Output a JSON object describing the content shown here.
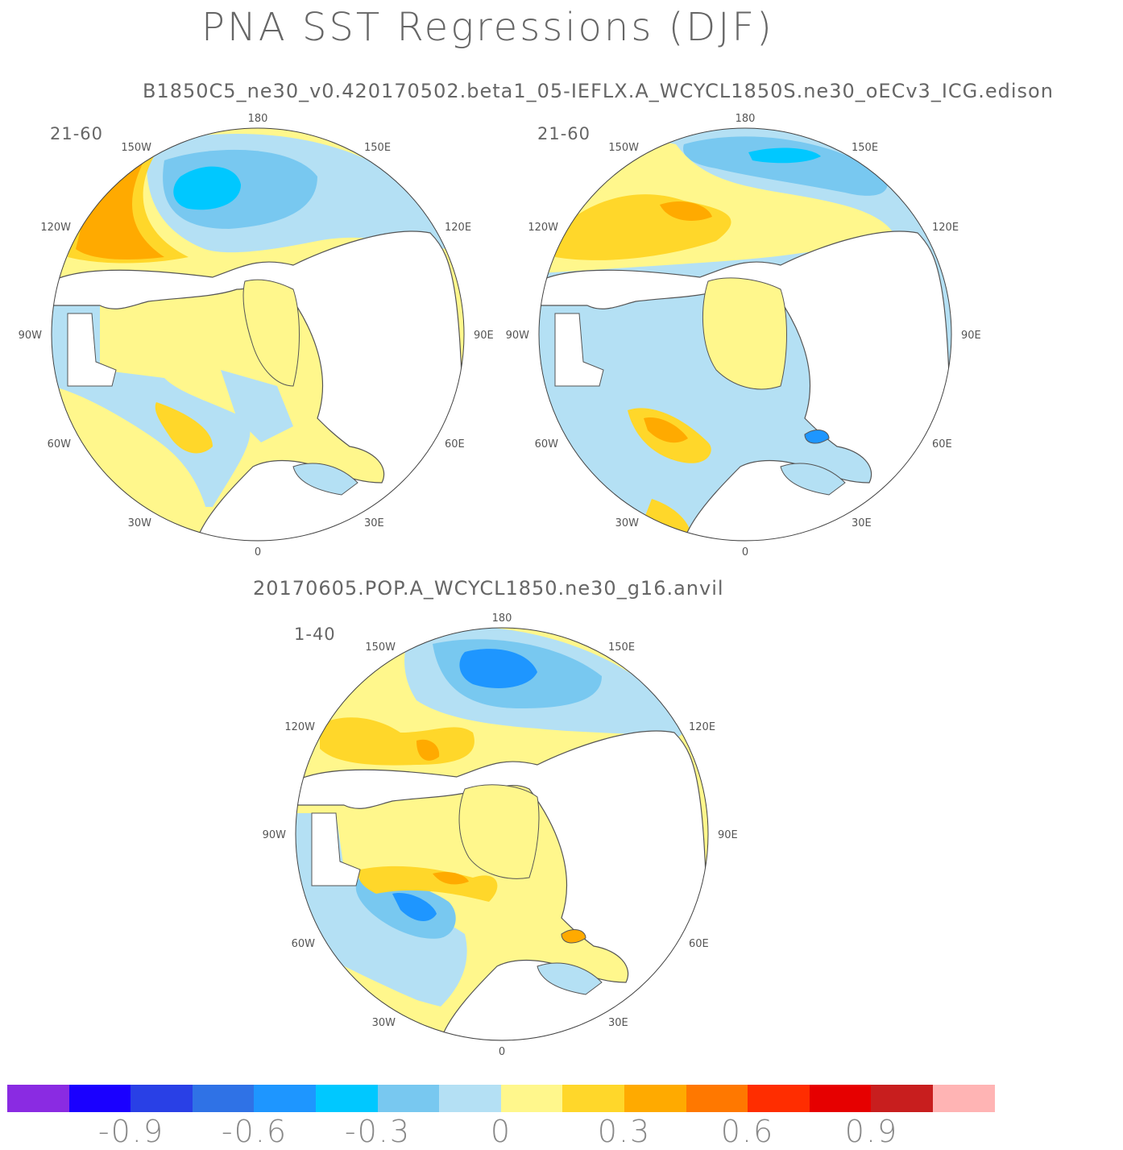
{
  "title": "PNA SST Regressions (DJF)",
  "subtitles": {
    "top": "B1850C5_ne30_v0.420170502.beta1_05-IEFLX.A_WCYCL1850S.ne30_oECv3_ICG.edison",
    "bottom": "20170605.POP.A_WCYCL1850.ne30_g16.anvil"
  },
  "panels": [
    {
      "id": "left",
      "period": "21-60"
    },
    {
      "id": "right",
      "period": "21-60"
    },
    {
      "id": "bottom",
      "period": "1-40"
    }
  ],
  "lon_labels": [
    "180",
    "150E",
    "120E",
    "90E",
    "60E",
    "30E",
    "0",
    "30W",
    "60W",
    "90W",
    "120W",
    "150W"
  ],
  "colorbar": {
    "colors": [
      "#8a2be2",
      "#1a00ff",
      "#2940e6",
      "#2f72e6",
      "#1e96ff",
      "#00c8ff",
      "#78c8f0",
      "#b4e0f4",
      "#fff78c",
      "#ffd72a",
      "#ffaa00",
      "#ff7800",
      "#ff2d00",
      "#e60000",
      "#c81e1e",
      "#ffb4b4"
    ],
    "labels": [
      "-0.9",
      "-0.6",
      "-0.3",
      "0",
      "0.3",
      "0.6",
      "0.9"
    ]
  },
  "colors": {
    "land": "#ffffff",
    "coast": "#555555"
  }
}
